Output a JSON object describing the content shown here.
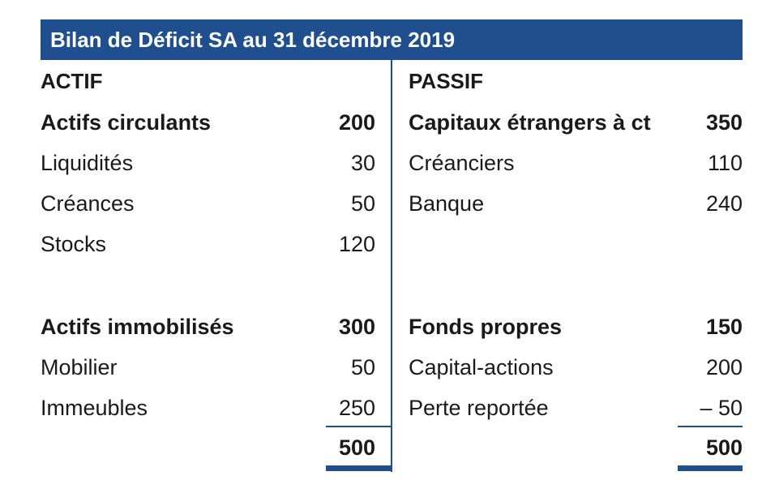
{
  "title": "Bilan de Déficit SA au 31 décembre 2019",
  "actif": {
    "heading": "ACTIF",
    "group1": [
      {
        "label": "Actifs circulants",
        "value": "200",
        "bold": true
      },
      {
        "label": "Liquidités",
        "value": "30",
        "bold": false
      },
      {
        "label": "Créances",
        "value": "50",
        "bold": false
      },
      {
        "label": "Stocks",
        "value": "120",
        "bold": false
      }
    ],
    "group2": [
      {
        "label": "Actifs immobilisés",
        "value": "300",
        "bold": true
      },
      {
        "label": "Mobilier",
        "value": "50",
        "bold": false
      },
      {
        "label": "Immeubles",
        "value": "250",
        "bold": false
      }
    ],
    "total": "500"
  },
  "passif": {
    "heading": "PASSIF",
    "group1": [
      {
        "label": "Capitaux étrangers à ct",
        "value": "350",
        "bold": true
      },
      {
        "label": "Créanciers",
        "value": "110",
        "bold": false
      },
      {
        "label": "Banque",
        "value": "240",
        "bold": false
      }
    ],
    "group2": [
      {
        "label": "Fonds propres",
        "value": "150",
        "bold": true
      },
      {
        "label": "Capital-actions",
        "value": "200",
        "bold": false
      },
      {
        "label": "Perte reportée",
        "value": "– 50",
        "bold": false
      }
    ],
    "total": "500"
  }
}
